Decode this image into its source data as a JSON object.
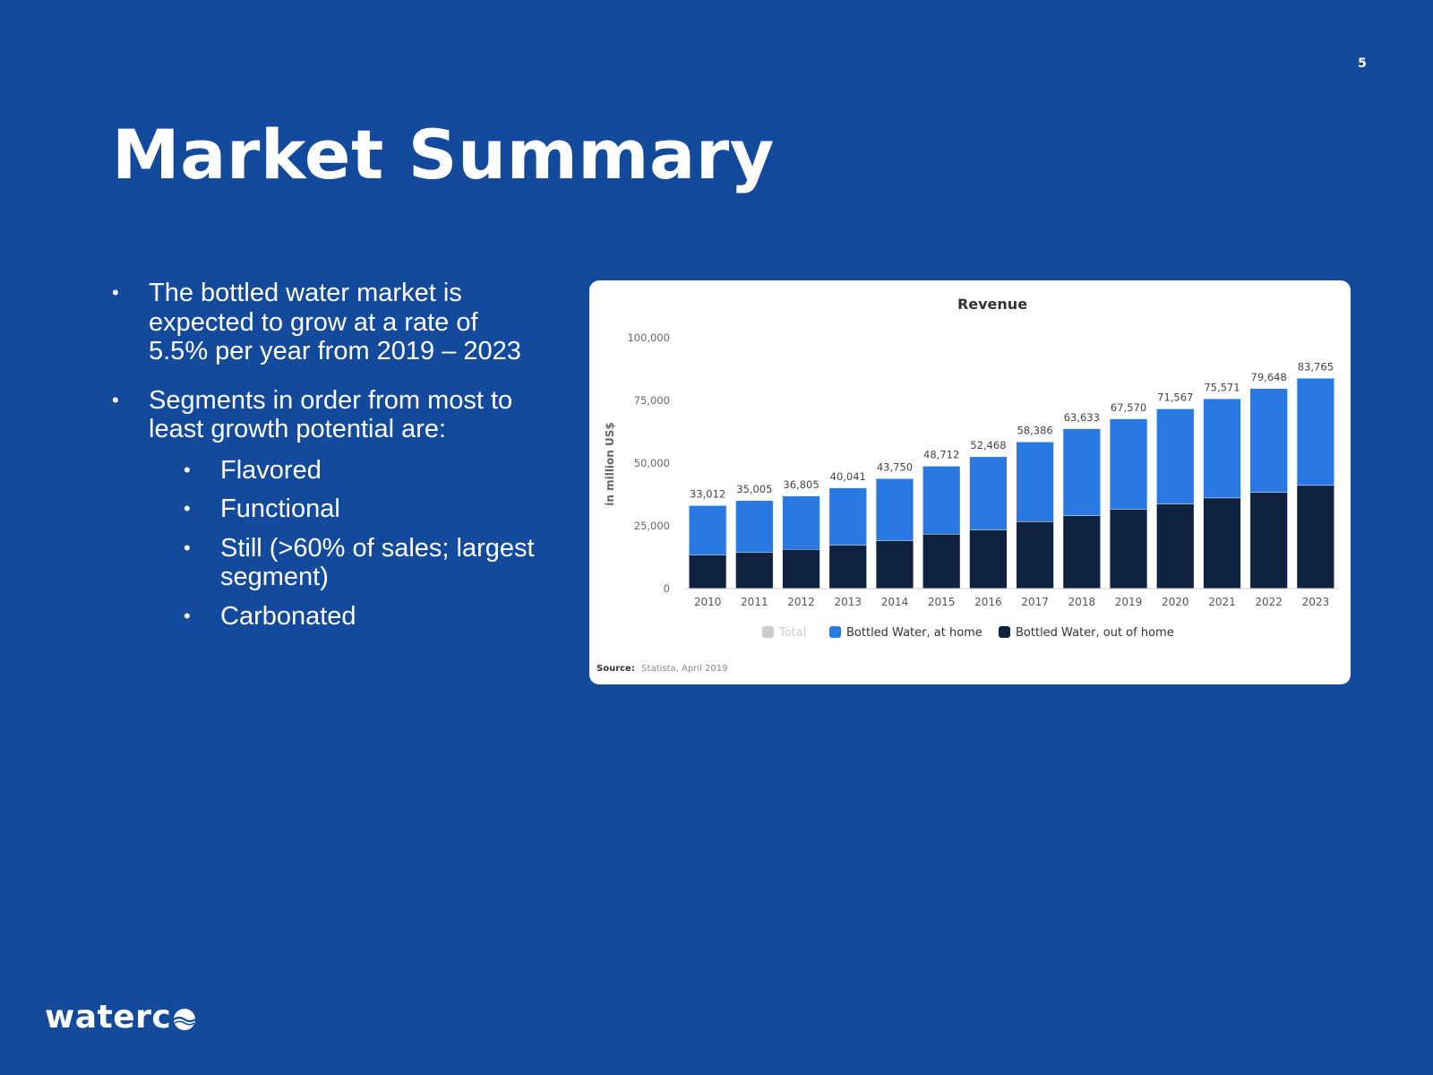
{
  "page": {
    "number": "5",
    "title": "Market Summary"
  },
  "bullets": {
    "b1": "The bottled water market is expected to grow at a rate of 5.5% per year from 2019 – 2023",
    "b2": "Segments in order from most to least growth potential are:",
    "segments": [
      "Flavored",
      "Functional",
      "Still (>60% of sales; largest segment)",
      "Carbonated"
    ]
  },
  "chart_data": {
    "type": "bar",
    "stacked": true,
    "title": "Revenue",
    "ylabel": "in million US$",
    "xlabel": "",
    "ylim": [
      0,
      100000
    ],
    "yticks": [
      "0",
      "25,000",
      "50,000",
      "75,000",
      "100,000"
    ],
    "categories": [
      "2010",
      "2011",
      "2012",
      "2013",
      "2014",
      "2015",
      "2016",
      "2017",
      "2018",
      "2019",
      "2020",
      "2021",
      "2022",
      "2023"
    ],
    "totals": [
      33012,
      35005,
      36805,
      40041,
      43750,
      48712,
      52468,
      58386,
      63633,
      67570,
      71567,
      75571,
      79648,
      83765
    ],
    "total_labels": [
      "33,012",
      "35,005",
      "36,805",
      "40,041",
      "43,750",
      "48,712",
      "52,468",
      "58,386",
      "63,633",
      "67,570",
      "71,567",
      "75,571",
      "79,648",
      "83,765"
    ],
    "series": [
      {
        "name": "Bottled Water, out of home",
        "color": "#0f2340",
        "values": [
          13500,
          14500,
          15700,
          17300,
          19200,
          21800,
          23500,
          26800,
          29100,
          31700,
          33800,
          36200,
          38500,
          41200
        ]
      },
      {
        "name": "Bottled Water, at home",
        "color": "#2a78e1",
        "values": [
          19512,
          20505,
          21105,
          22741,
          24550,
          26912,
          28968,
          31586,
          34533,
          35870,
          37767,
          39371,
          41148,
          42565
        ]
      }
    ],
    "legend": [
      {
        "name": "Total",
        "color": "#cccccc",
        "inactive": true
      },
      {
        "name": "Bottled Water, at home",
        "color": "#2a78e1"
      },
      {
        "name": "Bottled Water, out of home",
        "color": "#0f2340"
      }
    ],
    "legend_position": "bottom",
    "grid": false,
    "source_label": "Source:",
    "source_text": "Statista, April 2019"
  },
  "logo": {
    "text": "waterc"
  }
}
